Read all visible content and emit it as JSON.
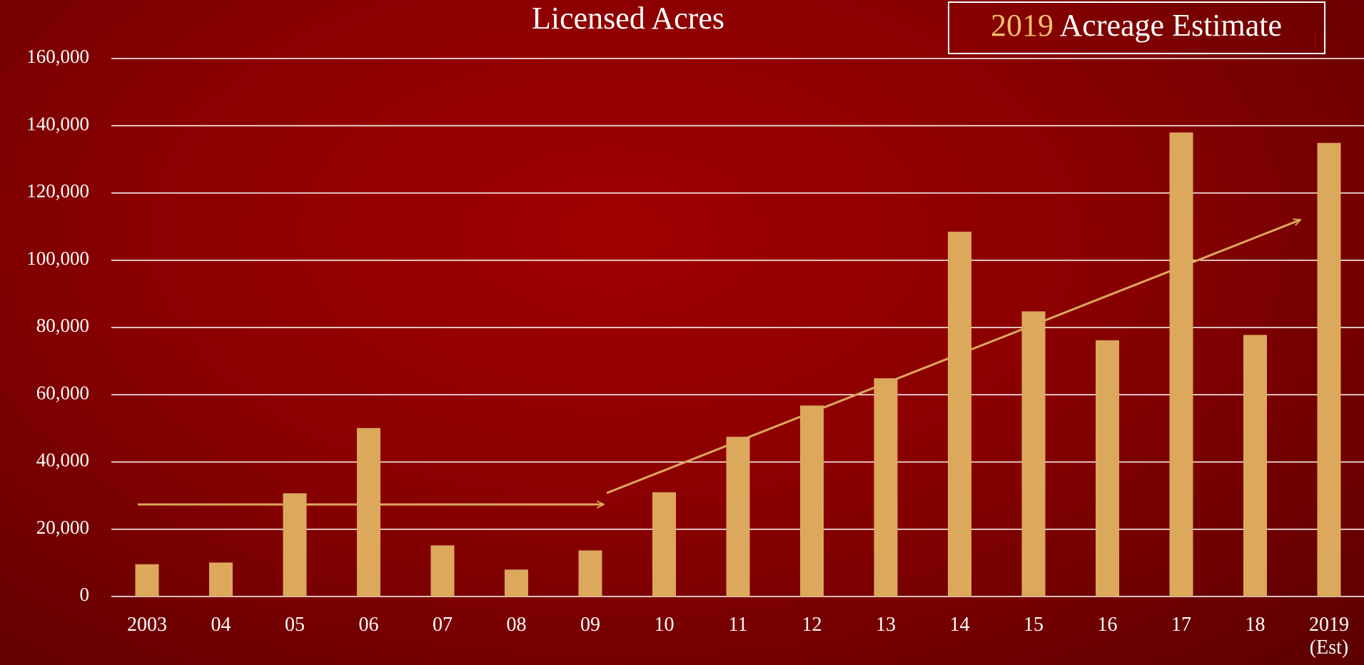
{
  "chart_data": {
    "type": "bar",
    "title": "Licensed Acres",
    "annotation": {
      "year": "2019",
      "text": "Acreage Estimate"
    },
    "categories": [
      "2003",
      "04",
      "05",
      "06",
      "07",
      "08",
      "09",
      "10",
      "11",
      "12",
      "13",
      "14",
      "15",
      "16",
      "17",
      "18",
      "2019\n(Est)"
    ],
    "values": [
      9600,
      10100,
      30700,
      50100,
      15200,
      8000,
      13700,
      31000,
      47500,
      56800,
      64900,
      108500,
      84800,
      76200,
      138000,
      77800,
      134900
    ],
    "color": "#dca85c",
    "ylim": [
      0,
      160000
    ],
    "yticks": [
      0,
      {
        "value": 20000,
        "label": "20,000"
      },
      {
        "value": 40000,
        "label": "40,000"
      },
      {
        "value": 60000,
        "label": "60,000"
      },
      {
        "value": 80000,
        "label": "80,000"
      },
      {
        "value": 100000,
        "label": "100,000"
      },
      {
        "value": 120000,
        "label": "120,000"
      },
      {
        "value": 140000,
        "label": "140,000"
      },
      {
        "value": 160000,
        "label": "160,000"
      }
    ],
    "grid": true
  }
}
